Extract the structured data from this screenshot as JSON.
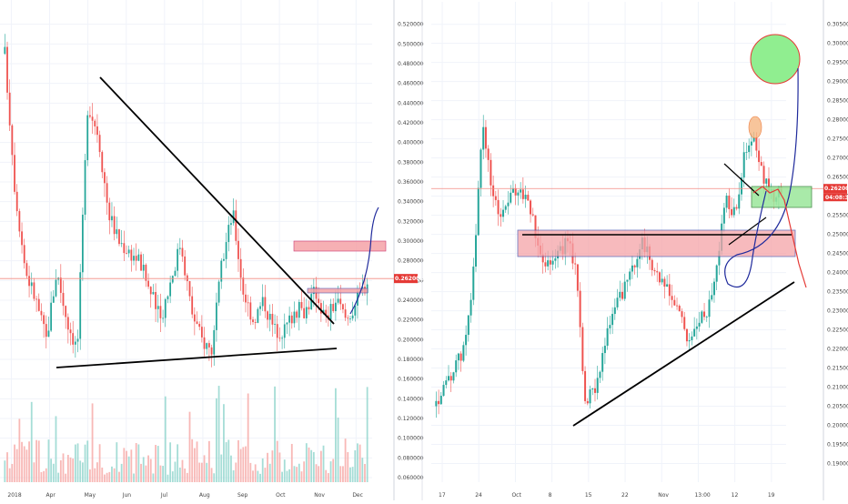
{
  "colors": {
    "up": "#26a69a",
    "down": "#ef5350",
    "vol_up": "#8fd4cc",
    "vol_down": "#f6a6a4",
    "grid": "#f0f3fa",
    "price_line": "#f28b82",
    "price_tag": "#e53935",
    "box_red_fill": "#f5a3a8",
    "box_green_fill": "#9be79b",
    "trendline": "#000000",
    "path_blue": "#1f2a9c",
    "path_red": "#e53935"
  },
  "chart_data": [
    {
      "type": "candlestick",
      "panel": "left",
      "x_ticks": [
        "2018",
        "Apr",
        "May",
        "Jun",
        "Jul",
        "Aug",
        "Sep",
        "Oct",
        "Nov",
        "Dec"
      ],
      "y_ticks": [
        "0.520000",
        "0.500000",
        "0.480000",
        "0.460000",
        "0.440000",
        "0.420000",
        "0.400000",
        "0.380000",
        "0.360000",
        "0.340000",
        "0.320000",
        "0.300000",
        "0.280000",
        "0.260000",
        "0.240000",
        "0.220000",
        "0.200000",
        "0.180000",
        "0.160000",
        "0.140000",
        "0.120000",
        "0.100000",
        "0.080000",
        "0.060000"
      ],
      "ylim": [
        0.06,
        0.54
      ],
      "last_price": "0.262002",
      "trend": [
        [
          0.49,
          0.35,
          0.27,
          0.24,
          0.2,
          0.27,
          0.22,
          0.19,
          0.44,
          0.41,
          0.33,
          0.3,
          0.29,
          0.28,
          0.25,
          0.22,
          0.26,
          0.3,
          0.23,
          0.2,
          0.19,
          0.28,
          0.33,
          0.25,
          0.22,
          0.24,
          0.21,
          0.21,
          0.23,
          0.23,
          0.25,
          0.22,
          0.24,
          0.22,
          0.24,
          0.26
        ]
      ],
      "volume_axis": "no labels",
      "annotations": [
        "descending trendline from May high",
        "horizontal support trendline",
        "red resistance box near 0.29",
        "red box near 0.25",
        "projected blue path upward"
      ]
    },
    {
      "type": "candlestick",
      "panel": "right",
      "x_ticks": [
        "17",
        "24",
        "Oct",
        "8",
        "15",
        "22",
        "Nov",
        "13:00",
        "12",
        "19"
      ],
      "y_ticks": [
        "0.305000",
        "0.300000",
        "0.295000",
        "0.290000",
        "0.285000",
        "0.280000",
        "0.275000",
        "0.270000",
        "0.265000",
        "0.260000",
        "0.255000",
        "0.250000",
        "0.245000",
        "0.240000",
        "0.235000",
        "0.230000",
        "0.225000",
        "0.220000",
        "0.215000",
        "0.210000",
        "0.205000",
        "0.200000",
        "0.195000",
        "0.190000"
      ],
      "ylim": [
        0.1875,
        0.3085
      ],
      "last_price": "0.262002",
      "countdown": "04:08:32",
      "trend": [
        [
          0.205,
          0.21,
          0.215,
          0.22,
          0.24,
          0.28,
          0.26,
          0.255,
          0.26,
          0.262,
          0.258,
          0.245,
          0.243,
          0.245,
          0.248,
          0.242,
          0.205,
          0.21,
          0.22,
          0.23,
          0.235,
          0.24,
          0.249,
          0.243,
          0.238,
          0.234,
          0.23,
          0.222,
          0.226,
          0.23,
          0.24,
          0.26,
          0.255,
          0.27,
          0.275,
          0.265,
          0.26,
          0.262
        ]
      ],
      "annotations": [
        "red resistance zone 0.245-0.251",
        "green support zone 0.257-0.262",
        "ascending trendline from Oct low",
        "black descending line near recent high",
        "orange circle at recent top",
        "green circle target near 0.295",
        "blue projected path up",
        "red projected path down"
      ]
    }
  ]
}
